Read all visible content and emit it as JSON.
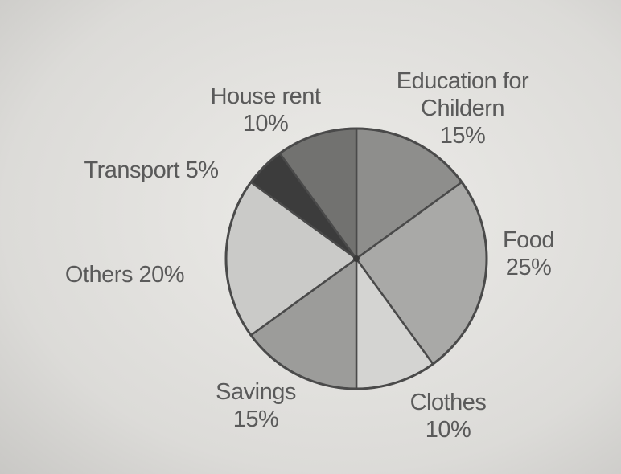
{
  "chart_data": {
    "type": "pie",
    "categories": [
      "Education for Childern",
      "Food",
      "Clothes",
      "Savings",
      "Others",
      "Transport",
      "House rent"
    ],
    "values": [
      15,
      25,
      10,
      15,
      20,
      5,
      10
    ],
    "value_labels": [
      "15%",
      "25%",
      "10%",
      "15%",
      "20%",
      "5%",
      "10%"
    ],
    "colors": [
      "#8e8e8c",
      "#a9a9a7",
      "#d4d4d2",
      "#9c9c9a",
      "#cacac8",
      "#3c3c3c",
      "#727270"
    ]
  }
}
